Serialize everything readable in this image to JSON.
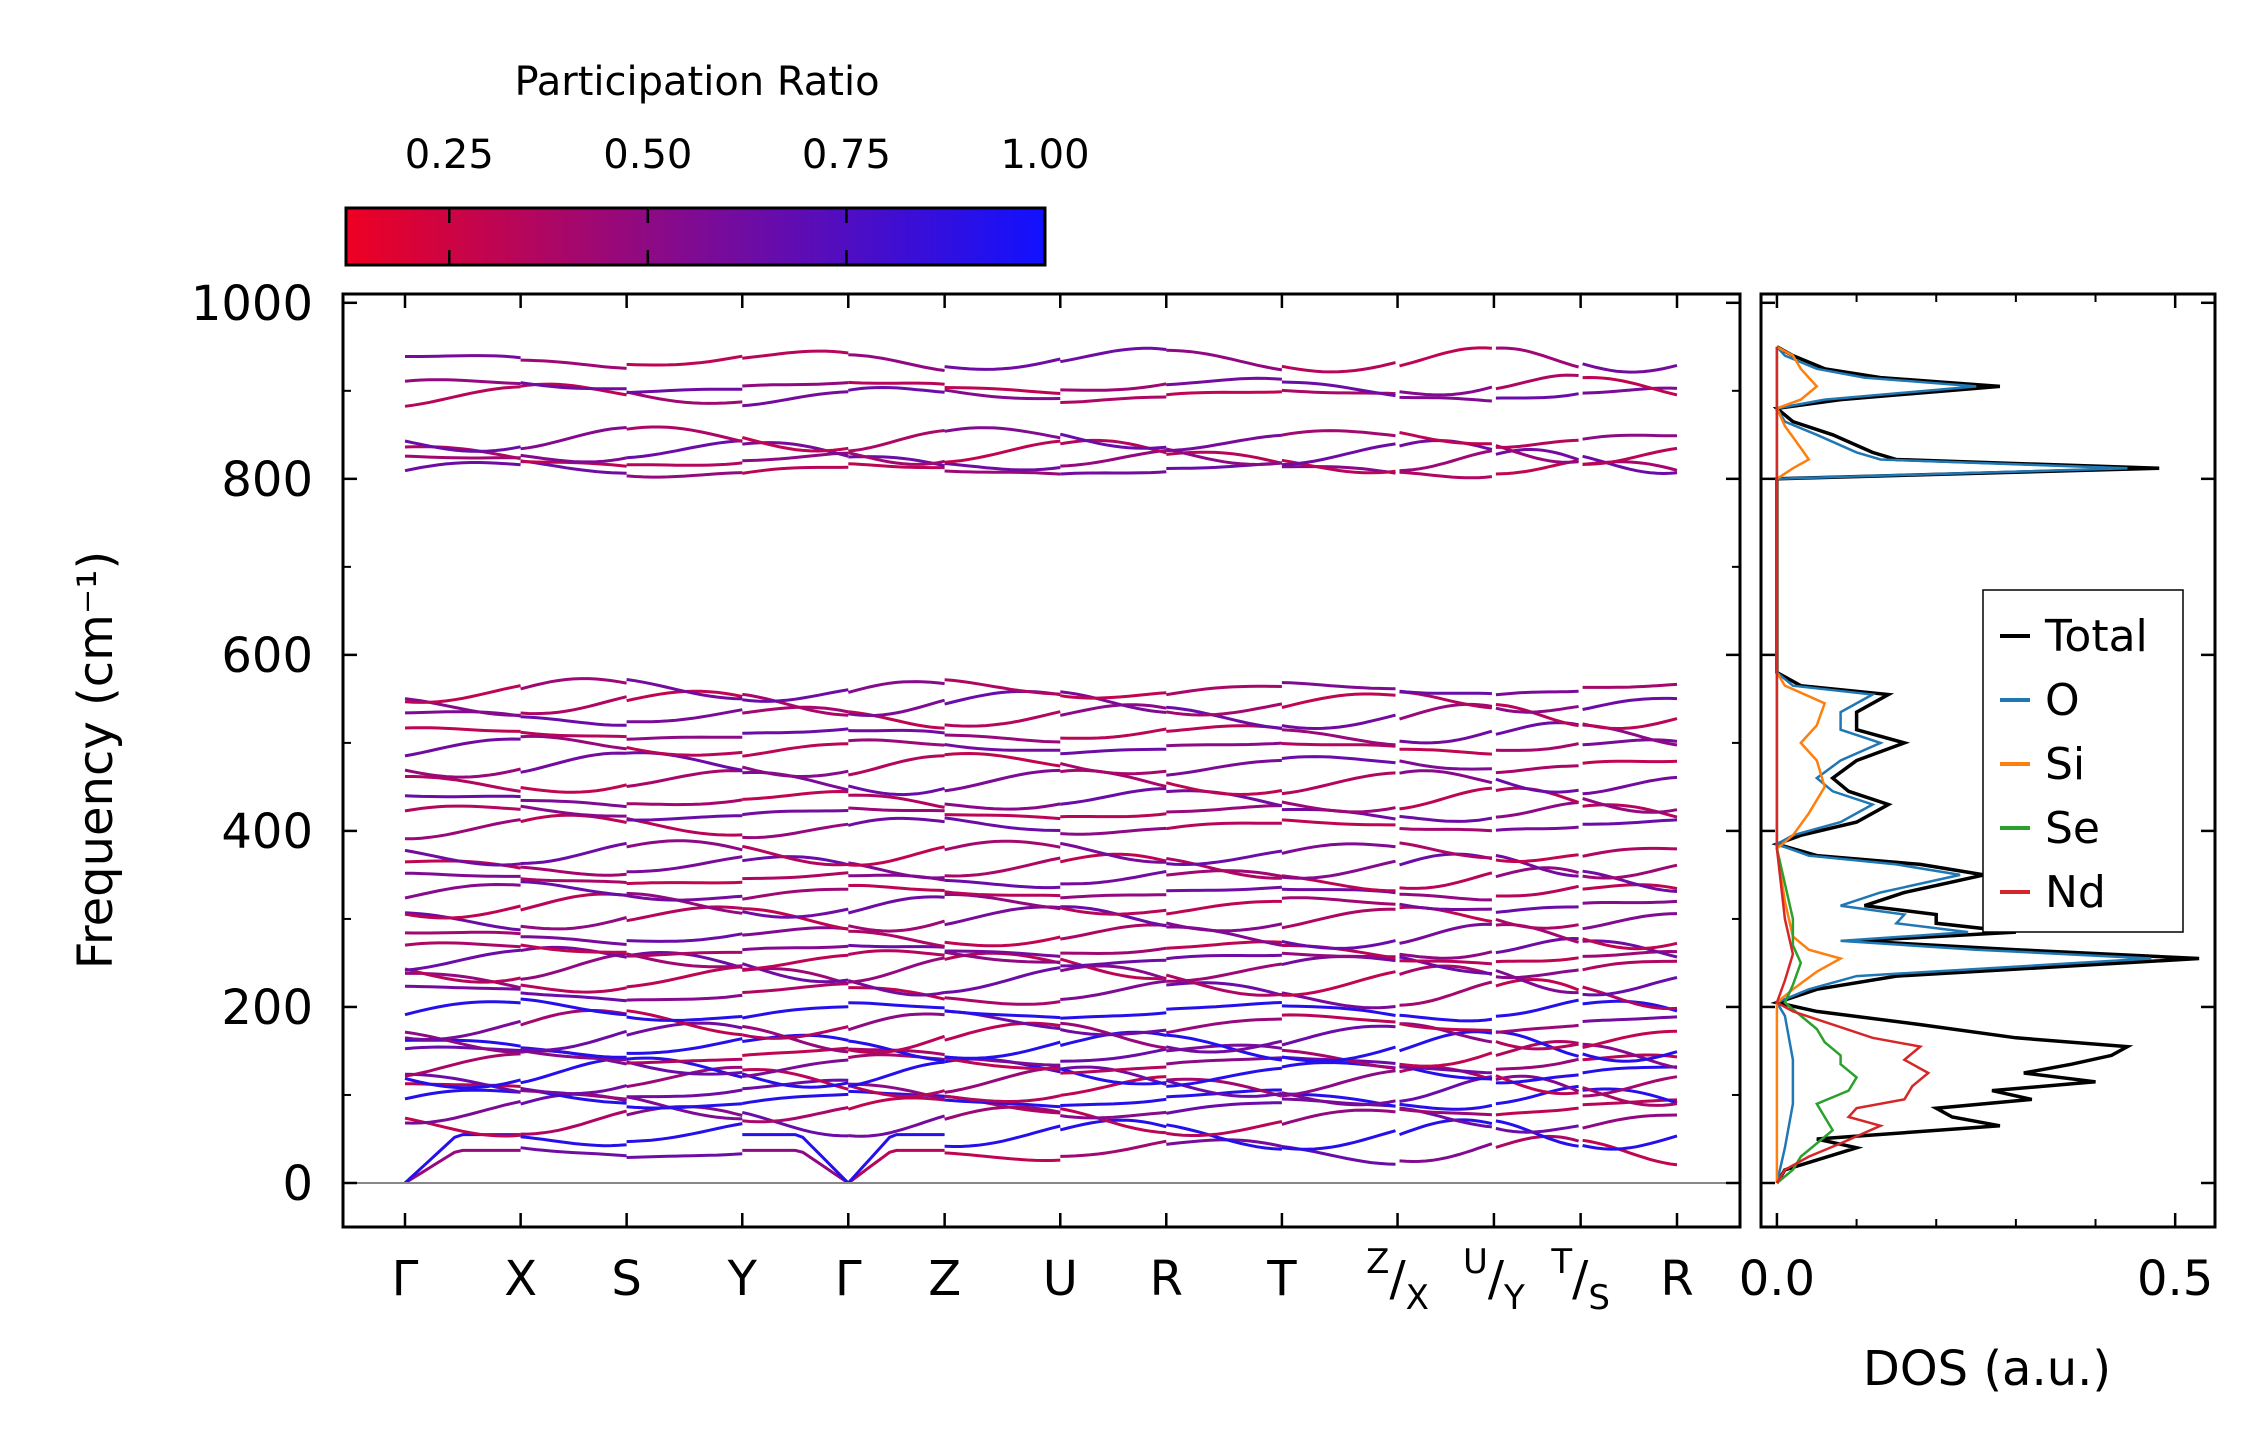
{
  "chart_data": [
    {
      "type": "line",
      "title": "",
      "subtype": "phonon-band-structure",
      "ylabel": "Frequency (cm⁻¹)",
      "xlabel": "",
      "ylim": [
        -50,
        1010
      ],
      "yticks": [
        0,
        200,
        400,
        600,
        800,
        1000
      ],
      "ytick_labels": [
        "0",
        "200",
        "400",
        "600",
        "800",
        "1000"
      ],
      "kpath_labels": [
        "Γ",
        "X",
        "S",
        "Y",
        "Γ",
        "Z",
        "U",
        "R",
        "T",
        "Z/X",
        "U/Y",
        "T/S",
        "R"
      ],
      "kpath_positions": [
        0.0,
        0.12,
        0.23,
        0.35,
        0.46,
        0.56,
        0.68,
        0.79,
        0.91,
        1.03,
        1.13,
        1.22,
        1.32
      ],
      "zero_line": 0,
      "colorbar": {
        "title": "Participation Ratio",
        "range": [
          0.12,
          1.0
        ],
        "ticks": [
          0.25,
          0.5,
          0.75,
          1.0
        ],
        "tick_labels": [
          "0.25",
          "0.50",
          "0.75",
          "1.00"
        ],
        "color_low": "#ee0022",
        "color_mid": "#8a0a88",
        "color_high": "#1111ff"
      },
      "bands": {
        "approx_band_frequencies": [
          37,
          55,
          70,
          85,
          95,
          105,
          115,
          125,
          135,
          145,
          155,
          165,
          180,
          195,
          215,
          230,
          245,
          255,
          265,
          280,
          300,
          315,
          330,
          345,
          360,
          375,
          405,
          420,
          435,
          455,
          475,
          495,
          510,
          530,
          545,
          560,
          810,
          820,
          830,
          845,
          895,
          905,
          935
        ]
      }
    },
    {
      "type": "line",
      "title": "",
      "subtype": "density-of-states",
      "xlabel": "DOS (a.u.)",
      "ylabel": "",
      "xlim": [
        -0.02,
        0.55
      ],
      "xticks": [
        0.0,
        0.5
      ],
      "xtick_labels": [
        "0.0",
        "0.5"
      ],
      "ylim": [
        -50,
        1010
      ],
      "legend": {
        "placement": "center-right",
        "entries": [
          "Total",
          "O",
          "Si",
          "Se",
          "Nd"
        ]
      },
      "series": [
        {
          "name": "Total",
          "color": "#000000",
          "points": [
            [
              0,
              0
            ],
            [
              0.01,
              15
            ],
            [
              0.1,
              40
            ],
            [
              0.05,
              50
            ],
            [
              0.28,
              65
            ],
            [
              0.22,
              75
            ],
            [
              0.2,
              85
            ],
            [
              0.32,
              95
            ],
            [
              0.27,
              105
            ],
            [
              0.4,
              115
            ],
            [
              0.31,
              125
            ],
            [
              0.37,
              135
            ],
            [
              0.42,
              145
            ],
            [
              0.44,
              155
            ],
            [
              0.3,
              165
            ],
            [
              0.18,
              180
            ],
            [
              0.05,
              195
            ],
            [
              0,
              205
            ],
            [
              0.05,
              220
            ],
            [
              0.15,
              235
            ],
            [
              0.53,
              255
            ],
            [
              0.3,
              265
            ],
            [
              0.1,
              275
            ],
            [
              0.3,
              285
            ],
            [
              0.2,
              295
            ],
            [
              0.2,
              305
            ],
            [
              0.11,
              315
            ],
            [
              0.16,
              330
            ],
            [
              0.26,
              350
            ],
            [
              0.18,
              362
            ],
            [
              0.05,
              372
            ],
            [
              0,
              385
            ],
            [
              0.03,
              395
            ],
            [
              0.1,
              410
            ],
            [
              0.14,
              430
            ],
            [
              0.09,
              445
            ],
            [
              0.07,
              460
            ],
            [
              0.1,
              480
            ],
            [
              0.16,
              500
            ],
            [
              0.1,
              515
            ],
            [
              0.1,
              535
            ],
            [
              0.14,
              555
            ],
            [
              0.03,
              565
            ],
            [
              0,
              580
            ],
            [
              0,
              700
            ],
            [
              0,
              800
            ],
            [
              0.48,
              812
            ],
            [
              0.15,
              822
            ],
            [
              0.12,
              830
            ],
            [
              0.07,
              850
            ],
            [
              0.02,
              865
            ],
            [
              0,
              880
            ],
            [
              0.08,
              890
            ],
            [
              0.28,
              905
            ],
            [
              0.13,
              915
            ],
            [
              0.06,
              925
            ],
            [
              0.02,
              940
            ],
            [
              0,
              950
            ]
          ]
        },
        {
          "name": "O",
          "color": "#1f77b4",
          "points": [
            [
              0,
              0
            ],
            [
              0.01,
              40
            ],
            [
              0.02,
              90
            ],
            [
              0.02,
              140
            ],
            [
              0.01,
              190
            ],
            [
              0,
              205
            ],
            [
              0.04,
              220
            ],
            [
              0.1,
              235
            ],
            [
              0.47,
              255
            ],
            [
              0.25,
              265
            ],
            [
              0.08,
              275
            ],
            [
              0.24,
              285
            ],
            [
              0.15,
              295
            ],
            [
              0.16,
              305
            ],
            [
              0.08,
              315
            ],
            [
              0.13,
              330
            ],
            [
              0.23,
              350
            ],
            [
              0.15,
              362
            ],
            [
              0.04,
              372
            ],
            [
              0,
              385
            ],
            [
              0.02,
              395
            ],
            [
              0.08,
              410
            ],
            [
              0.12,
              430
            ],
            [
              0.07,
              445
            ],
            [
              0.05,
              460
            ],
            [
              0.08,
              480
            ],
            [
              0.13,
              500
            ],
            [
              0.08,
              515
            ],
            [
              0.08,
              535
            ],
            [
              0.12,
              555
            ],
            [
              0.02,
              565
            ],
            [
              0,
              580
            ],
            [
              0,
              800
            ],
            [
              0.44,
              812
            ],
            [
              0.13,
              822
            ],
            [
              0.1,
              830
            ],
            [
              0.05,
              850
            ],
            [
              0.01,
              865
            ],
            [
              0,
              880
            ],
            [
              0.06,
              890
            ],
            [
              0.25,
              905
            ],
            [
              0.11,
              915
            ],
            [
              0.05,
              925
            ],
            [
              0.01,
              940
            ],
            [
              0,
              950
            ]
          ]
        },
        {
          "name": "Si",
          "color": "#ff7f0e",
          "points": [
            [
              0,
              0
            ],
            [
              0,
              180
            ],
            [
              0,
              205
            ],
            [
              0.02,
              220
            ],
            [
              0.05,
              240
            ],
            [
              0.08,
              255
            ],
            [
              0.04,
              265
            ],
            [
              0.02,
              280
            ],
            [
              0.01,
              320
            ],
            [
              0,
              380
            ],
            [
              0.02,
              395
            ],
            [
              0.04,
              420
            ],
            [
              0.06,
              450
            ],
            [
              0.05,
              480
            ],
            [
              0.03,
              500
            ],
            [
              0.05,
              520
            ],
            [
              0.06,
              545
            ],
            [
              0.01,
              565
            ],
            [
              0,
              580
            ],
            [
              0,
              800
            ],
            [
              0.02,
              812
            ],
            [
              0.04,
              822
            ],
            [
              0.03,
              835
            ],
            [
              0.01,
              860
            ],
            [
              0,
              880
            ],
            [
              0.03,
              890
            ],
            [
              0.05,
              905
            ],
            [
              0.04,
              915
            ],
            [
              0.03,
              925
            ],
            [
              0.02,
              940
            ],
            [
              0,
              950
            ]
          ]
        },
        {
          "name": "Se",
          "color": "#2ca02c",
          "points": [
            [
              0,
              0
            ],
            [
              0.02,
              15
            ],
            [
              0.03,
              30
            ],
            [
              0.05,
              45
            ],
            [
              0.07,
              60
            ],
            [
              0.06,
              75
            ],
            [
              0.05,
              90
            ],
            [
              0.09,
              105
            ],
            [
              0.1,
              120
            ],
            [
              0.08,
              135
            ],
            [
              0.08,
              145
            ],
            [
              0.06,
              160
            ],
            [
              0.05,
              175
            ],
            [
              0.03,
              190
            ],
            [
              0.01,
              205
            ],
            [
              0.02,
              225
            ],
            [
              0.03,
              250
            ],
            [
              0.02,
              270
            ],
            [
              0.02,
              300
            ],
            [
              0.01,
              340
            ],
            [
              0,
              380
            ],
            [
              0,
              950
            ]
          ]
        },
        {
          "name": "Nd",
          "color": "#d62728",
          "points": [
            [
              0,
              0
            ],
            [
              0.01,
              15
            ],
            [
              0.04,
              30
            ],
            [
              0.08,
              45
            ],
            [
              0.13,
              65
            ],
            [
              0.09,
              75
            ],
            [
              0.1,
              85
            ],
            [
              0.16,
              95
            ],
            [
              0.17,
              110
            ],
            [
              0.19,
              125
            ],
            [
              0.16,
              140
            ],
            [
              0.18,
              155
            ],
            [
              0.12,
              165
            ],
            [
              0.07,
              180
            ],
            [
              0.02,
              195
            ],
            [
              0,
              205
            ],
            [
              0.01,
              230
            ],
            [
              0.02,
              260
            ],
            [
              0.01,
              300
            ],
            [
              0,
              380
            ],
            [
              0,
              950
            ]
          ]
        }
      ]
    }
  ]
}
